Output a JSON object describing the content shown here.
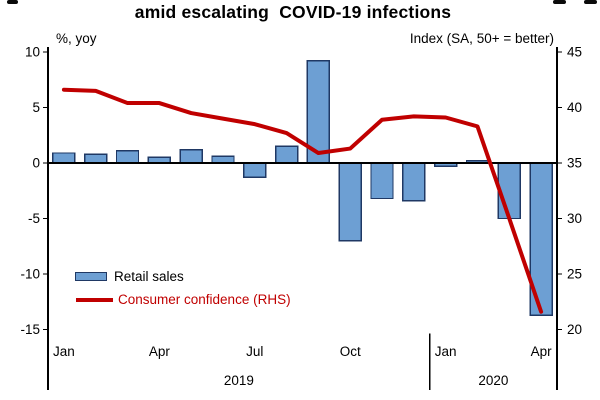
{
  "title": "amid escalating  COVID-19 infections",
  "legend": {
    "position": "bottom-left",
    "items": [
      {
        "label": "Retail sales",
        "type": "bar",
        "text_color": "#000000"
      },
      {
        "label": "Consumer confidence (RHS)",
        "type": "line",
        "text_color": "#C00000"
      }
    ]
  },
  "chart_data": {
    "type": "combo bar+line",
    "title": "amid escalating  COVID-19 infections",
    "categories": [
      "Jan 2019",
      "Feb 2019",
      "Mar 2019",
      "Apr 2019",
      "May 2019",
      "Jun 2019",
      "Jul 2019",
      "Aug 2019",
      "Sep 2019",
      "Oct 2019",
      "Nov 2019",
      "Dec 2019",
      "Jan 2020",
      "Feb 2020",
      "Mar 2020",
      "Apr 2020"
    ],
    "series": [
      {
        "name": "Retail sales",
        "type": "bar",
        "axis": "left",
        "values": [
          0.9,
          0.8,
          1.1,
          0.5,
          1.2,
          0.6,
          -1.3,
          1.5,
          9.2,
          -7.0,
          -3.2,
          -3.4,
          -0.3,
          0.2,
          -5.0,
          -13.7
        ]
      },
      {
        "name": "Consumer confidence (RHS)",
        "type": "line",
        "axis": "right",
        "values": [
          41.6,
          41.5,
          40.4,
          40.4,
          39.5,
          39.0,
          38.5,
          37.7,
          35.9,
          36.3,
          38.9,
          39.2,
          39.1,
          38.3,
          30.0,
          21.6
        ]
      }
    ],
    "axes": {
      "left": {
        "label": "%, yoy",
        "min": -15,
        "max": 10,
        "ticks": [
          10,
          5,
          0,
          -5,
          -10,
          -15
        ]
      },
      "right": {
        "label": "Index  (SA, 50+ = better)",
        "min": 20,
        "max": 45,
        "ticks": [
          45,
          40,
          35,
          30,
          25,
          20
        ]
      }
    },
    "x_tick_labels": [
      {
        "index": 0,
        "label": "Jan"
      },
      {
        "index": 3,
        "label": "Apr"
      },
      {
        "index": 6,
        "label": "Jul"
      },
      {
        "index": 9,
        "label": "Oct"
      },
      {
        "index": 12,
        "label": "Jan"
      },
      {
        "index": 15,
        "label": "Apr"
      }
    ],
    "year_groups": [
      {
        "label": "2019",
        "from": 0,
        "to": 11
      },
      {
        "label": "2020",
        "from": 12,
        "to": 15
      }
    ],
    "grid": false,
    "colors": {
      "bar_fill": "#6D9FD3",
      "bar_stroke": "#1F3864",
      "line": "#C00000",
      "axis": "#000000"
    }
  }
}
